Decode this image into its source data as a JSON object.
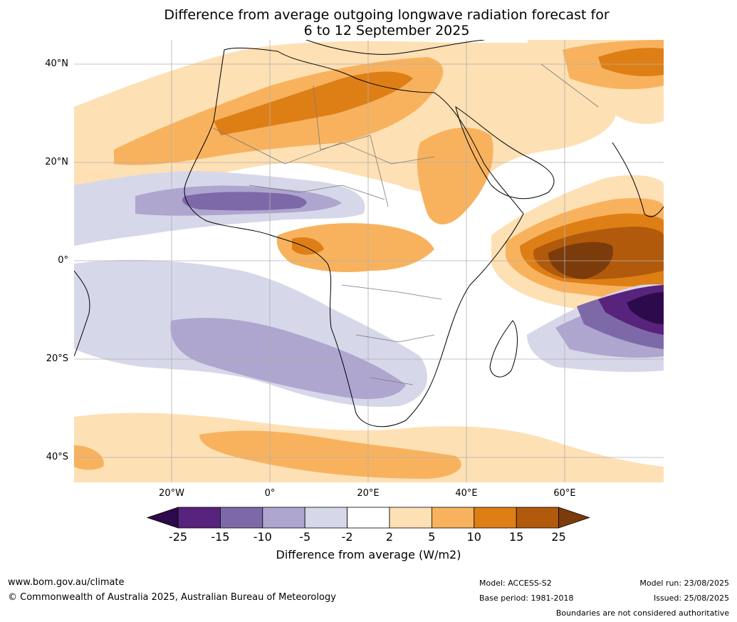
{
  "title": {
    "line1": "Difference from average outgoing longwave radiation forecast for",
    "line2": "6 to 12 September 2025"
  },
  "axes": {
    "lat_labels": [
      "40°N",
      "20°N",
      "0°",
      "20°S",
      "40°S"
    ],
    "lon_labels": [
      "20°W",
      "0°",
      "20°E",
      "40°E",
      "60°E"
    ]
  },
  "colorbar": {
    "title": "Difference from average (W/m2)",
    "ticks": [
      "-25",
      "-15",
      "-10",
      "-5",
      "-2",
      "2",
      "5",
      "10",
      "15",
      "25"
    ],
    "colors": {
      "below": "#2d0a4b",
      "neg25_15": "#57237d",
      "neg15_10": "#7e69a8",
      "neg10_5": "#aea6cf",
      "neg5_2": "#d7d7ea",
      "neutral": "#ffffff",
      "pos2_5": "#fde0b4",
      "pos5_10": "#f8b25e",
      "pos10_15": "#de7f16",
      "pos15_25": "#b15a0c",
      "above": "#7c3b0a"
    }
  },
  "footer": {
    "site": "www.bom.gov.au/climate",
    "copyright": "© Commonwealth of Australia 2025, Australian Bureau of Meteorology",
    "model": "Model: ACCESS-S2",
    "base_period": "Base period: 1981-2018",
    "model_run": "Model run: 23/08/2025",
    "issued": "Issued: 25/08/2025",
    "disclaimer": "Boundaries are not considered authoritative"
  }
}
